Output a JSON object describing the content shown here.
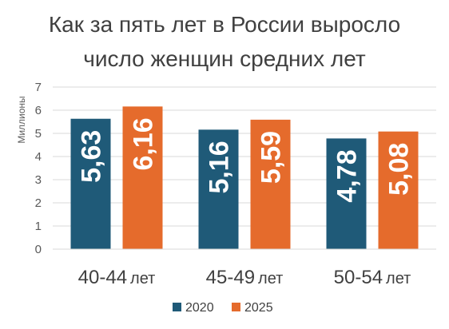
{
  "chart_data": {
    "type": "bar",
    "title_lines": [
      "Как за пять лет в России выросло",
      "число женщин средних лет"
    ],
    "ylabel": "Миллионы",
    "xlabel": "",
    "ylim": [
      0,
      7
    ],
    "yticks": [
      0,
      1,
      2,
      3,
      4,
      5,
      6,
      7
    ],
    "grid": true,
    "legend_position": "bottom",
    "categories": [
      {
        "range": "40-44",
        "unit": "лет"
      },
      {
        "range": "45-49",
        "unit": "лет"
      },
      {
        "range": "50-54",
        "unit": "лет"
      }
    ],
    "series": [
      {
        "name": "2020",
        "color": "#1f5a78",
        "values": [
          5.63,
          5.16,
          4.78
        ],
        "labels": [
          "5,63",
          "5,16",
          "4,78"
        ]
      },
      {
        "name": "2025",
        "color": "#e56b2c",
        "values": [
          6.16,
          5.59,
          5.08
        ],
        "labels": [
          "6,16",
          "5,59",
          "5,08"
        ]
      }
    ]
  }
}
